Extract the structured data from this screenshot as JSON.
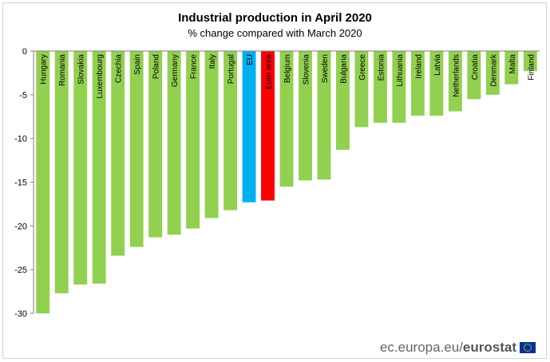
{
  "header": {
    "title": "Industrial production in April 2020",
    "subtitle": "% change compared with March 2020"
  },
  "footer": {
    "source_domain": "ec.europa.eu/",
    "source_brand": "eurostat"
  },
  "colors": {
    "country": "#92d050",
    "eu": "#00b0f0",
    "euro_area": "#ff0000",
    "axis": "#808080",
    "grid": "#d9d9d9"
  },
  "chart_data": {
    "type": "bar",
    "title": "Industrial production in April 2020",
    "subtitle": "% change compared with March 2020",
    "xlabel": "",
    "ylabel": "",
    "ylim": [
      -30,
      0
    ],
    "yticks": [
      0,
      -5,
      -10,
      -15,
      -20,
      -25,
      -30
    ],
    "grid": false,
    "categories": [
      "Hungary",
      "Romania",
      "Slovakia",
      "Luxembourg",
      "Czechia",
      "Spain",
      "Poland",
      "Germany",
      "France",
      "Italy",
      "Portugal",
      "EU",
      "Euro area",
      "Belgium",
      "Slovenia",
      "Sweden",
      "Bulgaria",
      "Greece",
      "Estonia",
      "Lithuania",
      "Ireland",
      "Latvia",
      "Netherlands",
      "Croatia",
      "Denmark",
      "Malta",
      "Finland"
    ],
    "values": [
      -30.0,
      -27.7,
      -26.7,
      -26.6,
      -23.4,
      -22.4,
      -21.3,
      -21.0,
      -20.3,
      -19.1,
      -18.2,
      -17.3,
      -17.1,
      -15.5,
      -14.8,
      -14.7,
      -11.3,
      -8.7,
      -8.2,
      -8.2,
      -7.4,
      -7.4,
      -6.9,
      -5.5,
      -5.0,
      -3.8,
      -2.3
    ],
    "highlight": {
      "EU": "eu",
      "Euro area": "euro_area"
    }
  }
}
